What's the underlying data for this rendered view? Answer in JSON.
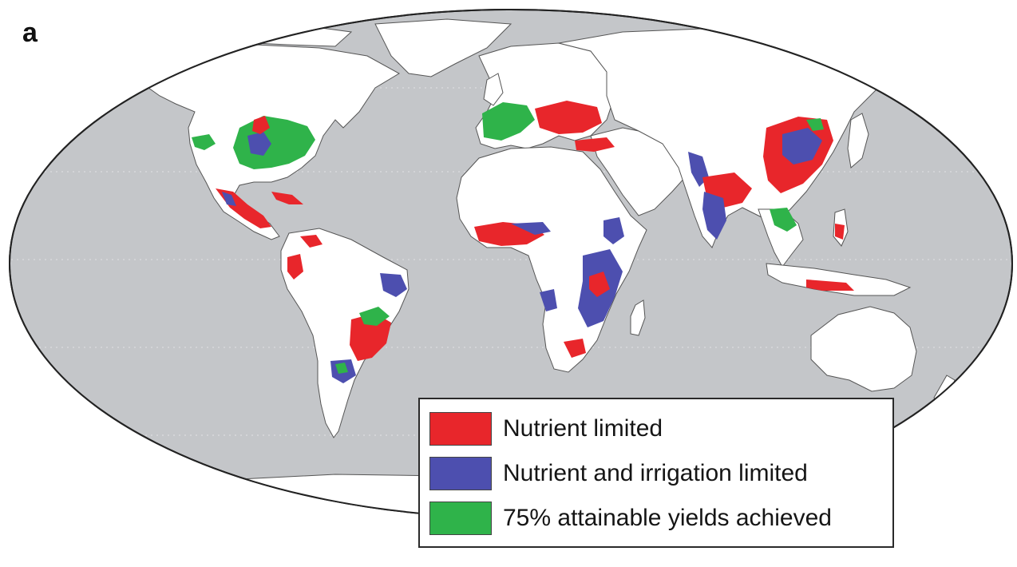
{
  "figure": {
    "panel_label": "a"
  },
  "map": {
    "projection": "robinson-like",
    "ocean_color": "#c4c6c9",
    "land_color": "#ffffff",
    "border_color": "#555555",
    "regions": [
      {
        "name": "US Corn Belt",
        "category": "green"
      },
      {
        "name": "Great Plains",
        "category": "blue"
      },
      {
        "name": "Mexico and Central America",
        "category": "red"
      },
      {
        "name": "Western Europe",
        "category": "green"
      },
      {
        "name": "Eastern Europe and Black Sea",
        "category": "red"
      },
      {
        "name": "West Africa",
        "category": "red"
      },
      {
        "name": "East and Southern Africa",
        "category": "blue"
      },
      {
        "name": "India",
        "category": "blue"
      },
      {
        "name": "China",
        "category": "red"
      },
      {
        "name": "Southern Brazil",
        "category": "red"
      },
      {
        "name": "Argentina Pampas",
        "category": "blue"
      }
    ]
  },
  "legend": {
    "items": [
      {
        "label": "Nutrient limited",
        "color": "#e8262b"
      },
      {
        "label": "Nutrient and irrigation limited",
        "color": "#4d4faf"
      },
      {
        "label": "75% attainable yields achieved",
        "color": "#2fb34a"
      }
    ]
  }
}
